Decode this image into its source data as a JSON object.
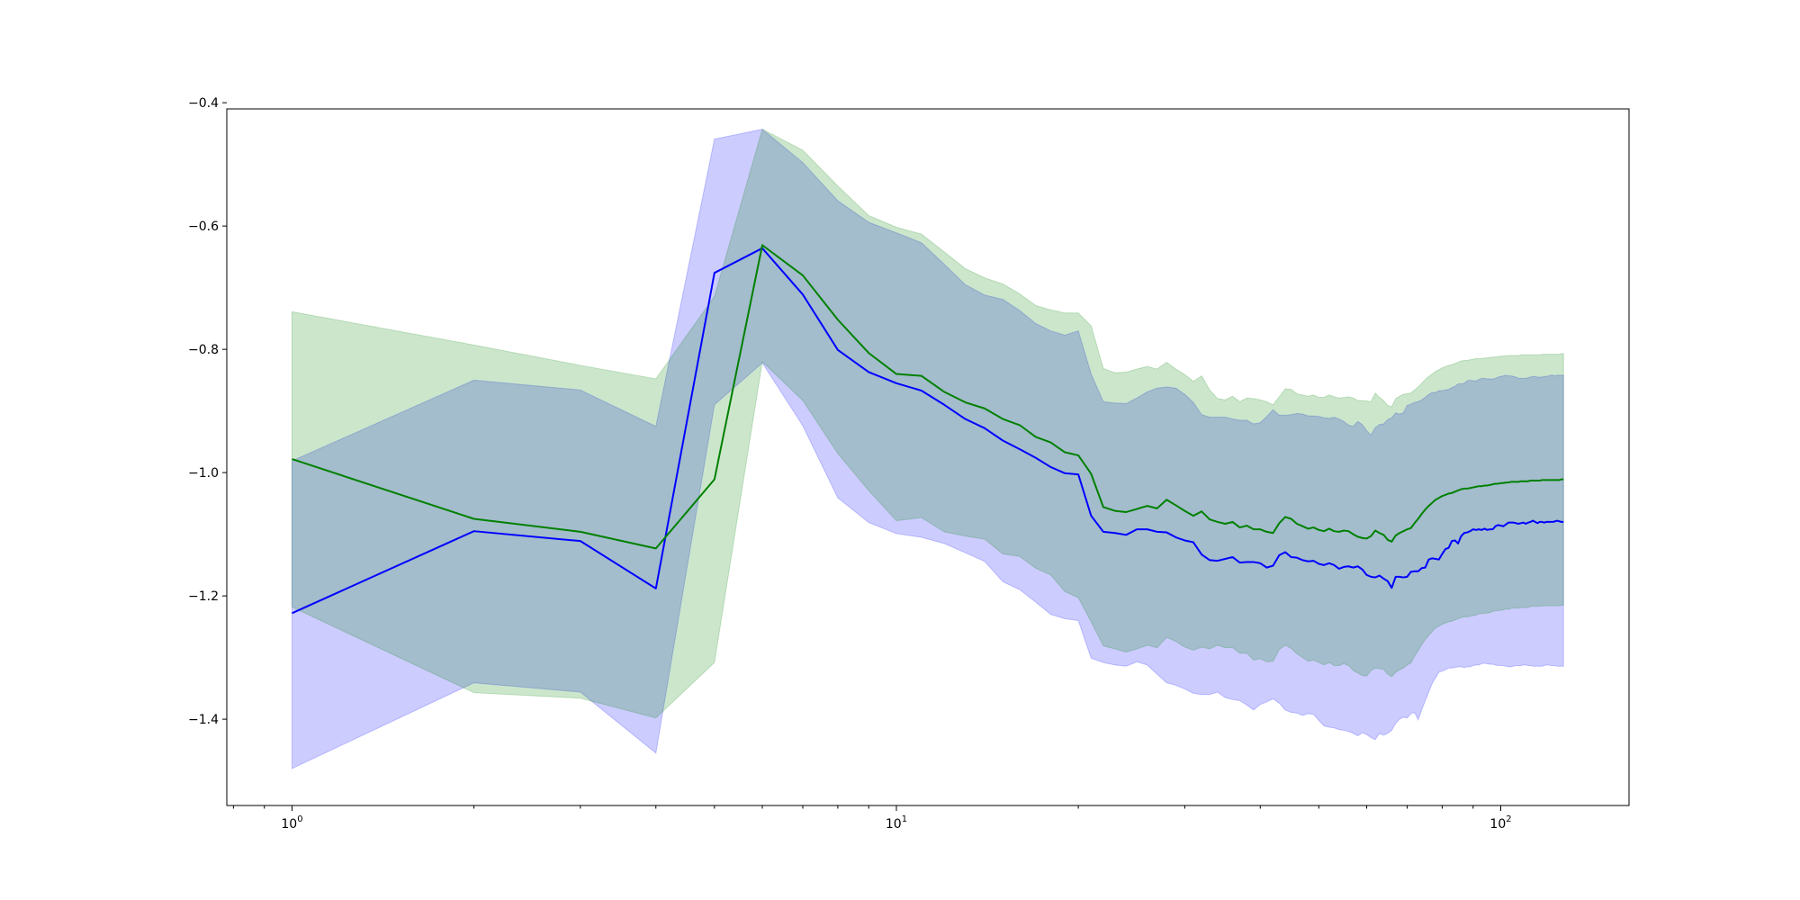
{
  "chart_data": {
    "type": "line",
    "title": "",
    "xlabel": "",
    "ylabel": "",
    "xscale": "log",
    "xlim": [
      0.78,
      163
    ],
    "ylim": [
      -1.54,
      -0.41
    ],
    "grid": false,
    "x_ticks": [
      {
        "base": "10",
        "exp": "0",
        "value": 1
      },
      {
        "base": "10",
        "exp": "1",
        "value": 10
      },
      {
        "base": "10",
        "exp": "2",
        "value": 100
      }
    ],
    "y_ticks": [
      {
        "label": "−0.4",
        "value": -0.4
      },
      {
        "label": "−0.6",
        "value": -0.6
      },
      {
        "label": "−0.8",
        "value": -0.8
      },
      {
        "label": "−1.0",
        "value": -1.0
      },
      {
        "label": "−1.2",
        "value": -1.2
      },
      {
        "label": "−1.4",
        "value": -1.4
      }
    ],
    "series": [
      {
        "color": "#0000ff",
        "band_color": "#0000ff",
        "band_opacity": 0.2,
        "x": [
          1,
          2,
          3,
          4,
          5,
          6,
          7,
          8,
          9,
          10,
          11,
          12,
          13,
          14,
          15,
          16,
          17,
          18,
          19,
          20,
          21,
          22,
          23,
          24,
          25,
          26,
          27,
          28,
          29,
          30,
          31,
          32,
          33,
          34,
          35,
          36,
          37,
          38,
          39,
          40,
          41,
          42,
          43,
          44,
          45,
          46,
          47,
          48,
          49,
          50,
          51,
          52,
          53,
          54,
          55,
          56,
          57,
          58,
          59,
          60,
          61,
          62,
          63,
          64,
          65,
          66,
          67,
          68,
          69,
          70,
          71,
          72,
          73,
          74,
          75,
          76,
          77,
          78,
          79,
          80,
          81,
          82,
          83,
          84,
          85,
          86,
          87,
          88,
          89,
          90,
          91,
          92,
          93,
          94,
          95,
          96,
          97,
          98,
          99,
          100,
          101,
          102,
          103,
          104,
          105,
          106,
          107,
          108,
          109,
          110,
          111,
          112,
          113,
          114,
          115,
          116,
          117,
          118,
          119,
          120,
          121,
          122,
          123,
          124,
          125,
          126,
          127
        ],
        "y": [
          -1.228,
          -1.095,
          -1.111,
          -1.188,
          -0.676,
          -0.636,
          -0.711,
          -0.801,
          -0.837,
          -0.855,
          -0.867,
          -0.89,
          -0.913,
          -0.928,
          -0.948,
          -0.962,
          -0.976,
          -0.991,
          -1.001,
          -1.003,
          -1.07,
          -1.096,
          -1.098,
          -1.101,
          -1.092,
          -1.092,
          -1.096,
          -1.097,
          -1.105,
          -1.11,
          -1.113,
          -1.133,
          -1.142,
          -1.143,
          -1.14,
          -1.137,
          -1.146,
          -1.145,
          -1.145,
          -1.147,
          -1.154,
          -1.151,
          -1.134,
          -1.129,
          -1.137,
          -1.138,
          -1.142,
          -1.144,
          -1.143,
          -1.148,
          -1.15,
          -1.147,
          -1.15,
          -1.156,
          -1.153,
          -1.152,
          -1.154,
          -1.152,
          -1.157,
          -1.166,
          -1.169,
          -1.17,
          -1.167,
          -1.172,
          -1.176,
          -1.187,
          -1.169,
          -1.169,
          -1.17,
          -1.169,
          -1.161,
          -1.16,
          -1.16,
          -1.155,
          -1.154,
          -1.141,
          -1.139,
          -1.14,
          -1.141,
          -1.132,
          -1.124,
          -1.122,
          -1.111,
          -1.11,
          -1.115,
          -1.103,
          -1.098,
          -1.097,
          -1.095,
          -1.092,
          -1.093,
          -1.092,
          -1.093,
          -1.091,
          -1.093,
          -1.092,
          -1.092,
          -1.087,
          -1.085,
          -1.086,
          -1.087,
          -1.084,
          -1.081,
          -1.081,
          -1.081,
          -1.082,
          -1.083,
          -1.082,
          -1.081,
          -1.083,
          -1.081,
          -1.08,
          -1.078,
          -1.08,
          -1.082,
          -1.08,
          -1.08,
          -1.081,
          -1.08,
          -1.08,
          -1.08,
          -1.08,
          -1.079,
          -1.078,
          -1.079,
          -1.08,
          -1.08
        ],
        "y_upper": [
          -0.981,
          -0.85,
          -0.866,
          -0.925,
          -0.459,
          -0.443,
          -0.497,
          -0.559,
          -0.594,
          -0.611,
          -0.627,
          -0.662,
          -0.695,
          -0.712,
          -0.719,
          -0.737,
          -0.758,
          -0.77,
          -0.777,
          -0.77,
          -0.84,
          -0.885,
          -0.887,
          -0.888,
          -0.879,
          -0.869,
          -0.863,
          -0.861,
          -0.863,
          -0.873,
          -0.886,
          -0.906,
          -0.91,
          -0.91,
          -0.91,
          -0.913,
          -0.915,
          -0.915,
          -0.921,
          -0.919,
          -0.909,
          -0.898,
          -0.907,
          -0.907,
          -0.906,
          -0.904,
          -0.905,
          -0.908,
          -0.908,
          -0.909,
          -0.911,
          -0.912,
          -0.91,
          -0.913,
          -0.917,
          -0.923,
          -0.925,
          -0.917,
          -0.922,
          -0.932,
          -0.939,
          -0.927,
          -0.922,
          -0.921,
          -0.914,
          -0.911,
          -0.903,
          -0.905,
          -0.903,
          -0.891,
          -0.889,
          -0.886,
          -0.885,
          -0.882,
          -0.878,
          -0.873,
          -0.87,
          -0.87,
          -0.867,
          -0.867,
          -0.866,
          -0.865,
          -0.862,
          -0.86,
          -0.856,
          -0.856,
          -0.855,
          -0.851,
          -0.85,
          -0.851,
          -0.851,
          -0.849,
          -0.847,
          -0.847,
          -0.848,
          -0.848,
          -0.848,
          -0.847,
          -0.845,
          -0.844,
          -0.843,
          -0.842,
          -0.843,
          -0.843,
          -0.844,
          -0.845,
          -0.847,
          -0.847,
          -0.847,
          -0.847,
          -0.846,
          -0.845,
          -0.844,
          -0.844,
          -0.845,
          -0.845,
          -0.845,
          -0.844,
          -0.844,
          -0.843,
          -0.842,
          -0.842,
          -0.843,
          -0.842,
          -0.842,
          -0.842,
          -0.842
        ],
        "y_lower": [
          -1.48,
          -1.341,
          -1.356,
          -1.455,
          -0.89,
          -0.822,
          -0.924,
          -1.041,
          -1.081,
          -1.099,
          -1.105,
          -1.115,
          -1.13,
          -1.144,
          -1.177,
          -1.19,
          -1.21,
          -1.23,
          -1.237,
          -1.24,
          -1.301,
          -1.308,
          -1.312,
          -1.314,
          -1.307,
          -1.312,
          -1.327,
          -1.341,
          -1.345,
          -1.351,
          -1.358,
          -1.36,
          -1.36,
          -1.356,
          -1.365,
          -1.368,
          -1.37,
          -1.377,
          -1.385,
          -1.376,
          -1.372,
          -1.367,
          -1.374,
          -1.385,
          -1.389,
          -1.39,
          -1.394,
          -1.391,
          -1.392,
          -1.402,
          -1.411,
          -1.413,
          -1.414,
          -1.417,
          -1.418,
          -1.42,
          -1.423,
          -1.427,
          -1.422,
          -1.425,
          -1.43,
          -1.433,
          -1.423,
          -1.426,
          -1.423,
          -1.418,
          -1.407,
          -1.4,
          -1.397,
          -1.398,
          -1.391,
          -1.389,
          -1.401,
          -1.385,
          -1.37,
          -1.356,
          -1.342,
          -1.333,
          -1.324,
          -1.322,
          -1.32,
          -1.317,
          -1.317,
          -1.316,
          -1.315,
          -1.315,
          -1.316,
          -1.315,
          -1.315,
          -1.313,
          -1.312,
          -1.312,
          -1.31,
          -1.309,
          -1.31,
          -1.311,
          -1.311,
          -1.312,
          -1.313,
          -1.313,
          -1.313,
          -1.314,
          -1.315,
          -1.315,
          -1.314,
          -1.313,
          -1.313,
          -1.313,
          -1.312,
          -1.312,
          -1.313,
          -1.313,
          -1.314,
          -1.314,
          -1.314,
          -1.314,
          -1.314,
          -1.313,
          -1.312,
          -1.312,
          -1.313,
          -1.313,
          -1.313,
          -1.314,
          -1.314,
          -1.314,
          -1.314
        ]
      },
      {
        "color": "#008000",
        "band_color": "#008000",
        "band_opacity": 0.2,
        "x": [
          1,
          2,
          3,
          4,
          5,
          6,
          7,
          8,
          9,
          10,
          11,
          12,
          13,
          14,
          15,
          16,
          17,
          18,
          19,
          20,
          21,
          22,
          23,
          24,
          25,
          26,
          27,
          28,
          29,
          30,
          31,
          32,
          33,
          34,
          35,
          36,
          37,
          38,
          39,
          40,
          41,
          42,
          43,
          44,
          45,
          46,
          47,
          48,
          49,
          50,
          51,
          52,
          53,
          54,
          55,
          56,
          57,
          58,
          59,
          60,
          61,
          62,
          63,
          64,
          65,
          66,
          67,
          68,
          69,
          70,
          71,
          72,
          73,
          74,
          75,
          76,
          77,
          78,
          79,
          80,
          81,
          82,
          83,
          84,
          85,
          86,
          87,
          88,
          89,
          90,
          91,
          92,
          93,
          94,
          95,
          96,
          97,
          98,
          99,
          100,
          101,
          102,
          103,
          104,
          105,
          106,
          107,
          108,
          109,
          110,
          111,
          112,
          113,
          114,
          115,
          116,
          117,
          118,
          119,
          120,
          121,
          122,
          123,
          124,
          125,
          126,
          127
        ],
        "y": [
          -0.978,
          -1.075,
          -1.096,
          -1.123,
          -1.011,
          -0.631,
          -0.68,
          -0.752,
          -0.806,
          -0.84,
          -0.843,
          -0.869,
          -0.886,
          -0.896,
          -0.913,
          -0.923,
          -0.942,
          -0.951,
          -0.967,
          -0.972,
          -1.002,
          -1.056,
          -1.062,
          -1.064,
          -1.059,
          -1.054,
          -1.058,
          -1.044,
          -1.053,
          -1.062,
          -1.07,
          -1.063,
          -1.076,
          -1.08,
          -1.083,
          -1.08,
          -1.089,
          -1.086,
          -1.092,
          -1.092,
          -1.096,
          -1.098,
          -1.082,
          -1.072,
          -1.075,
          -1.083,
          -1.087,
          -1.091,
          -1.089,
          -1.093,
          -1.095,
          -1.091,
          -1.095,
          -1.096,
          -1.094,
          -1.095,
          -1.1,
          -1.104,
          -1.106,
          -1.107,
          -1.103,
          -1.094,
          -1.098,
          -1.101,
          -1.109,
          -1.112,
          -1.102,
          -1.098,
          -1.095,
          -1.092,
          -1.09,
          -1.082,
          -1.075,
          -1.067,
          -1.06,
          -1.054,
          -1.049,
          -1.044,
          -1.041,
          -1.038,
          -1.036,
          -1.034,
          -1.033,
          -1.031,
          -1.029,
          -1.027,
          -1.026,
          -1.026,
          -1.025,
          -1.024,
          -1.023,
          -1.022,
          -1.022,
          -1.021,
          -1.021,
          -1.02,
          -1.019,
          -1.018,
          -1.018,
          -1.017,
          -1.017,
          -1.016,
          -1.016,
          -1.015,
          -1.015,
          -1.015,
          -1.015,
          -1.014,
          -1.014,
          -1.014,
          -1.014,
          -1.013,
          -1.013,
          -1.013,
          -1.013,
          -1.013,
          -1.012,
          -1.012,
          -1.012,
          -1.012,
          -1.012,
          -1.012,
          -1.012,
          -1.012,
          -1.012,
          -1.011,
          -1.011
        ],
        "y_upper": [
          -0.739,
          -0.793,
          -0.826,
          -0.848,
          -0.714,
          -0.443,
          -0.477,
          -0.535,
          -0.583,
          -0.602,
          -0.613,
          -0.642,
          -0.669,
          -0.684,
          -0.694,
          -0.71,
          -0.729,
          -0.736,
          -0.741,
          -0.741,
          -0.762,
          -0.831,
          -0.838,
          -0.837,
          -0.832,
          -0.828,
          -0.832,
          -0.821,
          -0.832,
          -0.841,
          -0.852,
          -0.843,
          -0.866,
          -0.88,
          -0.882,
          -0.876,
          -0.885,
          -0.879,
          -0.88,
          -0.882,
          -0.885,
          -0.89,
          -0.877,
          -0.864,
          -0.865,
          -0.872,
          -0.874,
          -0.876,
          -0.874,
          -0.878,
          -0.878,
          -0.874,
          -0.877,
          -0.879,
          -0.878,
          -0.877,
          -0.879,
          -0.883,
          -0.883,
          -0.884,
          -0.885,
          -0.871,
          -0.878,
          -0.883,
          -0.891,
          -0.893,
          -0.88,
          -0.876,
          -0.873,
          -0.872,
          -0.871,
          -0.866,
          -0.861,
          -0.855,
          -0.849,
          -0.844,
          -0.84,
          -0.836,
          -0.833,
          -0.83,
          -0.828,
          -0.826,
          -0.825,
          -0.823,
          -0.821,
          -0.819,
          -0.818,
          -0.818,
          -0.817,
          -0.816,
          -0.815,
          -0.815,
          -0.815,
          -0.814,
          -0.814,
          -0.813,
          -0.813,
          -0.812,
          -0.812,
          -0.811,
          -0.811,
          -0.811,
          -0.81,
          -0.81,
          -0.81,
          -0.81,
          -0.81,
          -0.809,
          -0.809,
          -0.809,
          -0.809,
          -0.809,
          -0.809,
          -0.809,
          -0.809,
          -0.809,
          -0.808,
          -0.808,
          -0.808,
          -0.808,
          -0.808,
          -0.808,
          -0.808,
          -0.808,
          -0.808,
          -0.807,
          -0.807
        ],
        "y_lower": [
          -1.218,
          -1.357,
          -1.366,
          -1.398,
          -1.308,
          -0.82,
          -0.883,
          -0.969,
          -1.029,
          -1.078,
          -1.073,
          -1.096,
          -1.103,
          -1.108,
          -1.132,
          -1.136,
          -1.155,
          -1.166,
          -1.193,
          -1.203,
          -1.242,
          -1.281,
          -1.286,
          -1.291,
          -1.286,
          -1.28,
          -1.284,
          -1.267,
          -1.274,
          -1.283,
          -1.288,
          -1.283,
          -1.286,
          -1.28,
          -1.284,
          -1.284,
          -1.293,
          -1.293,
          -1.304,
          -1.302,
          -1.307,
          -1.306,
          -1.287,
          -1.28,
          -1.285,
          -1.294,
          -1.3,
          -1.306,
          -1.304,
          -1.308,
          -1.312,
          -1.308,
          -1.313,
          -1.313,
          -1.31,
          -1.313,
          -1.321,
          -1.325,
          -1.329,
          -1.33,
          -1.321,
          -1.317,
          -1.318,
          -1.319,
          -1.327,
          -1.331,
          -1.324,
          -1.32,
          -1.317,
          -1.312,
          -1.309,
          -1.298,
          -1.289,
          -1.279,
          -1.271,
          -1.264,
          -1.258,
          -1.252,
          -1.249,
          -1.246,
          -1.244,
          -1.242,
          -1.241,
          -1.239,
          -1.237,
          -1.235,
          -1.234,
          -1.234,
          -1.233,
          -1.232,
          -1.231,
          -1.229,
          -1.229,
          -1.228,
          -1.228,
          -1.227,
          -1.225,
          -1.224,
          -1.224,
          -1.223,
          -1.223,
          -1.221,
          -1.222,
          -1.22,
          -1.22,
          -1.22,
          -1.22,
          -1.219,
          -1.219,
          -1.219,
          -1.219,
          -1.217,
          -1.217,
          -1.217,
          -1.217,
          -1.217,
          -1.216,
          -1.216,
          -1.216,
          -1.216,
          -1.216,
          -1.216,
          -1.216,
          -1.216,
          -1.216,
          -1.215,
          -1.215
        ]
      }
    ]
  }
}
